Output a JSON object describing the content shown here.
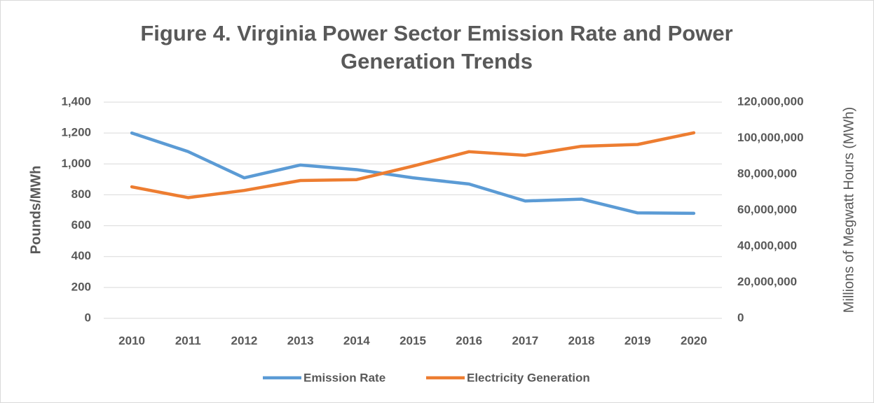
{
  "chart_data": {
    "type": "line",
    "title": "Figure 4. Virginia Power Sector Emission Rate and Power Generation Trends",
    "y_label": "Pounds/MWh",
    "y2_label": "Millions of Megwatt Hours (MWh)",
    "categories": [
      "2010",
      "2011",
      "2012",
      "2013",
      "2014",
      "2015",
      "2016",
      "2017",
      "2018",
      "2019",
      "2020"
    ],
    "series": [
      {
        "name": "Emission Rate",
        "color": "#5b9bd5",
        "values": [
          1200,
          1080,
          910,
          993,
          963,
          910,
          870,
          760,
          772,
          683,
          680
        ]
      },
      {
        "name": "Electricity Generation",
        "color": "#ed7d31",
        "axis": "y2",
        "values": [
          73000000,
          67000000,
          71000000,
          76500000,
          77000000,
          84500000,
          92500000,
          90500000,
          95500000,
          96500000,
          103000000
        ]
      }
    ],
    "ylim": [
      0,
      1400
    ],
    "yticks": [
      0,
      200,
      400,
      600,
      800,
      {
        "value": 1000,
        "label": "1,000"
      },
      {
        "value": 1200,
        "label": "1,200"
      },
      {
        "value": 1400,
        "label": "1,400"
      }
    ],
    "y2lim": [
      0,
      120000000
    ],
    "y2ticks": [
      0,
      {
        "value": 20000000,
        "label": "20,000,000"
      },
      {
        "value": 40000000,
        "label": "40,000,000"
      },
      {
        "value": 60000000,
        "label": "60,000,000"
      },
      {
        "value": 80000000,
        "label": "80,000,000"
      },
      {
        "value": 100000000,
        "label": "100,000,000"
      },
      {
        "value": 120000000,
        "label": "120,000,000"
      }
    ],
    "grid": true,
    "legend": "bottom"
  }
}
